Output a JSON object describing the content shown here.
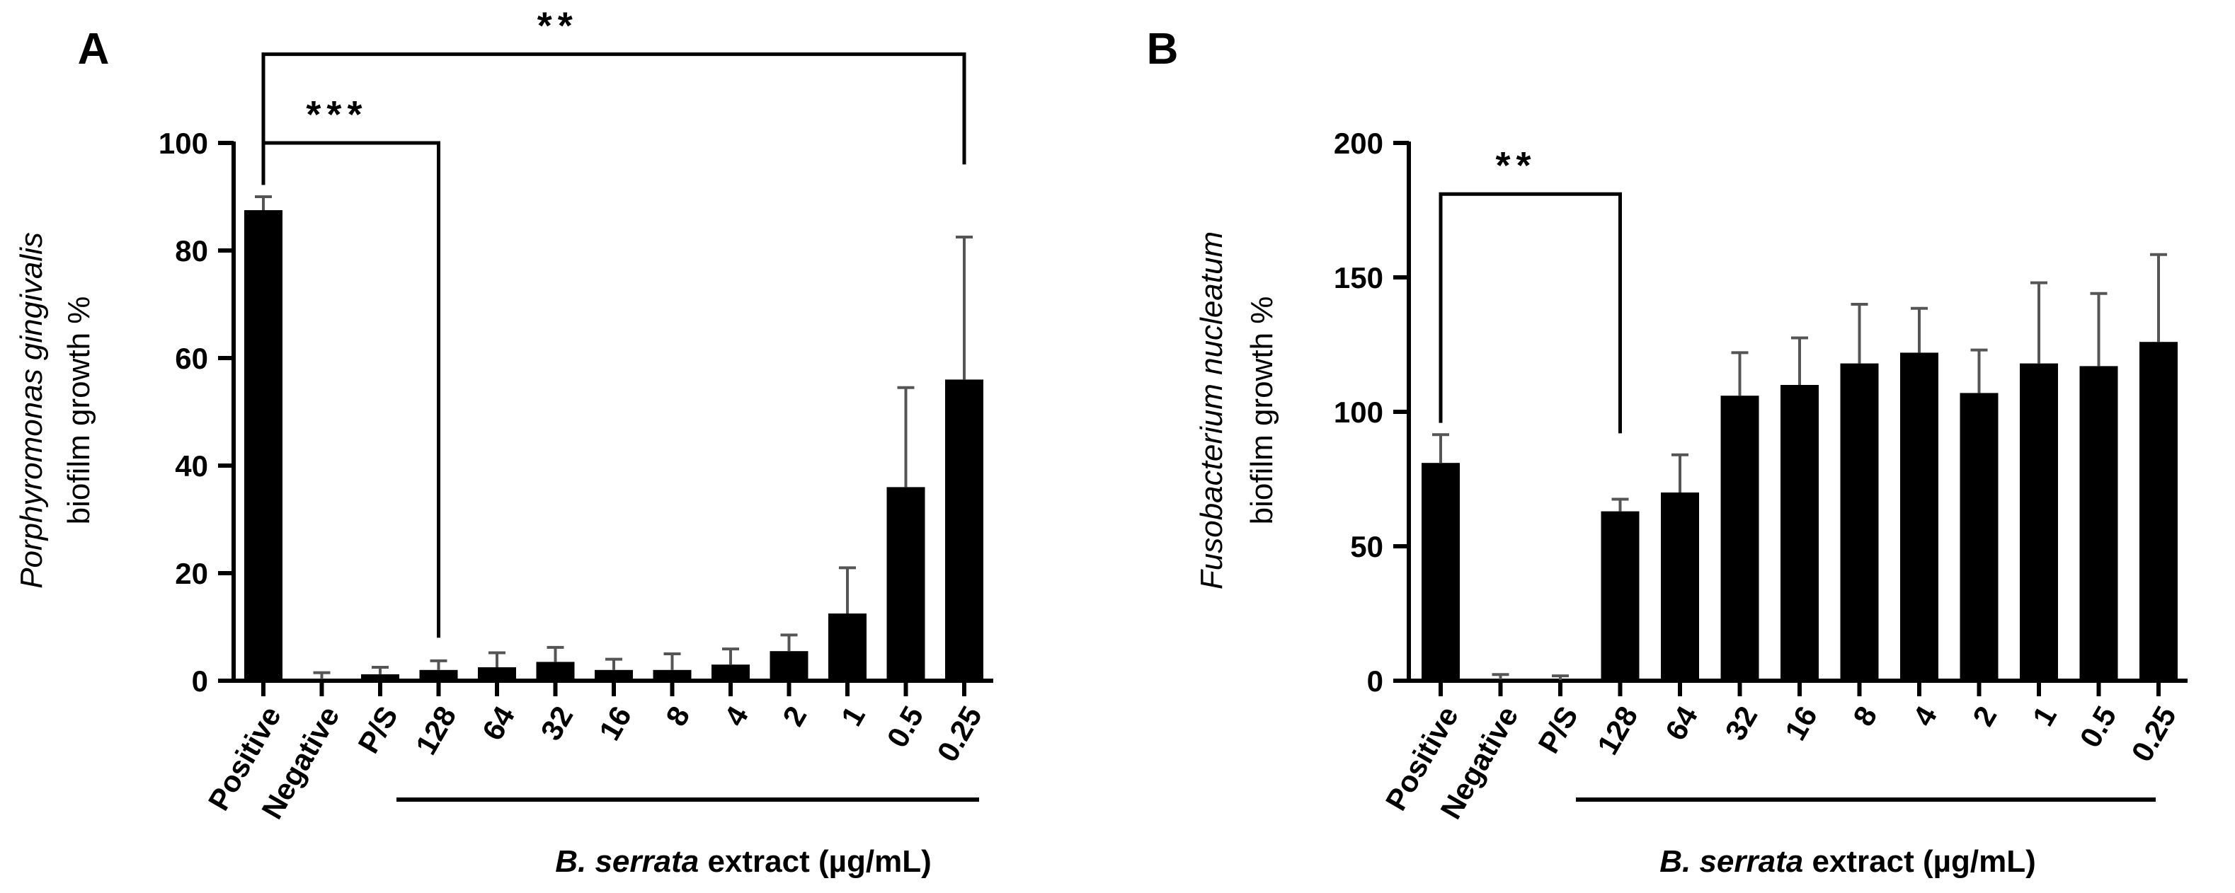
{
  "chart_data": [
    {
      "type": "bar",
      "panel_label": "A",
      "title": "",
      "ylabel_italic": "Porphyromonas gingivalis",
      "ylabel": "biofilm growth %",
      "xlabel_italic": "B. serrata",
      "xlabel": " extract (µg/mL)",
      "categories": [
        "Positive",
        "Negative",
        "P/S",
        "128",
        "64",
        "32",
        "16",
        "8",
        "4",
        "2",
        "1",
        "0.5",
        "0.25"
      ],
      "values": [
        87.5,
        0.3,
        1.2,
        2,
        2.5,
        3.5,
        2,
        2,
        3,
        5.5,
        12.5,
        36,
        56
      ],
      "errors": [
        2.5,
        1.2,
        1.3,
        1.7,
        2.7,
        2.7,
        2,
        3,
        2.9,
        3,
        8.5,
        18.5,
        26.5
      ],
      "ylim": [
        0,
        100
      ],
      "yticks": [
        0,
        20,
        40,
        60,
        80,
        100
      ],
      "extract_categories": [
        "128",
        "0.25"
      ],
      "significance": [
        {
          "from": "Positive",
          "to": "128",
          "label": "***",
          "bracket_y": 100,
          "end_y": 8
        },
        {
          "from": "Positive",
          "to": "0.25",
          "label": "**",
          "bracket_y": 116.5,
          "end_y": 96
        }
      ]
    },
    {
      "type": "bar",
      "panel_label": "B",
      "title": "",
      "ylabel_italic": "Fusobacterium nucleatum",
      "ylabel": "biofilm growth %",
      "xlabel_italic": "B. serrata",
      "xlabel": " extract (µg/mL)",
      "categories": [
        "Positive",
        "Negative",
        "P/S",
        "128",
        "64",
        "32",
        "16",
        "8",
        "4",
        "2",
        "1",
        "0.5",
        "0.25"
      ],
      "values": [
        81,
        0.5,
        0.3,
        63,
        70,
        106,
        110,
        118,
        122,
        107,
        118,
        117,
        126
      ],
      "errors": [
        10.5,
        1.8,
        1.5,
        4.5,
        14,
        16,
        17.5,
        22,
        16.5,
        16,
        30,
        27,
        32.5
      ],
      "ylim": [
        0,
        200
      ],
      "yticks": [
        0,
        50,
        100,
        150,
        200
      ],
      "extract_categories": [
        "128",
        "0.25"
      ],
      "significance": [
        {
          "from": "Positive",
          "to": "128",
          "label": "**",
          "bracket_y": 181,
          "end_y": 92
        }
      ]
    }
  ]
}
